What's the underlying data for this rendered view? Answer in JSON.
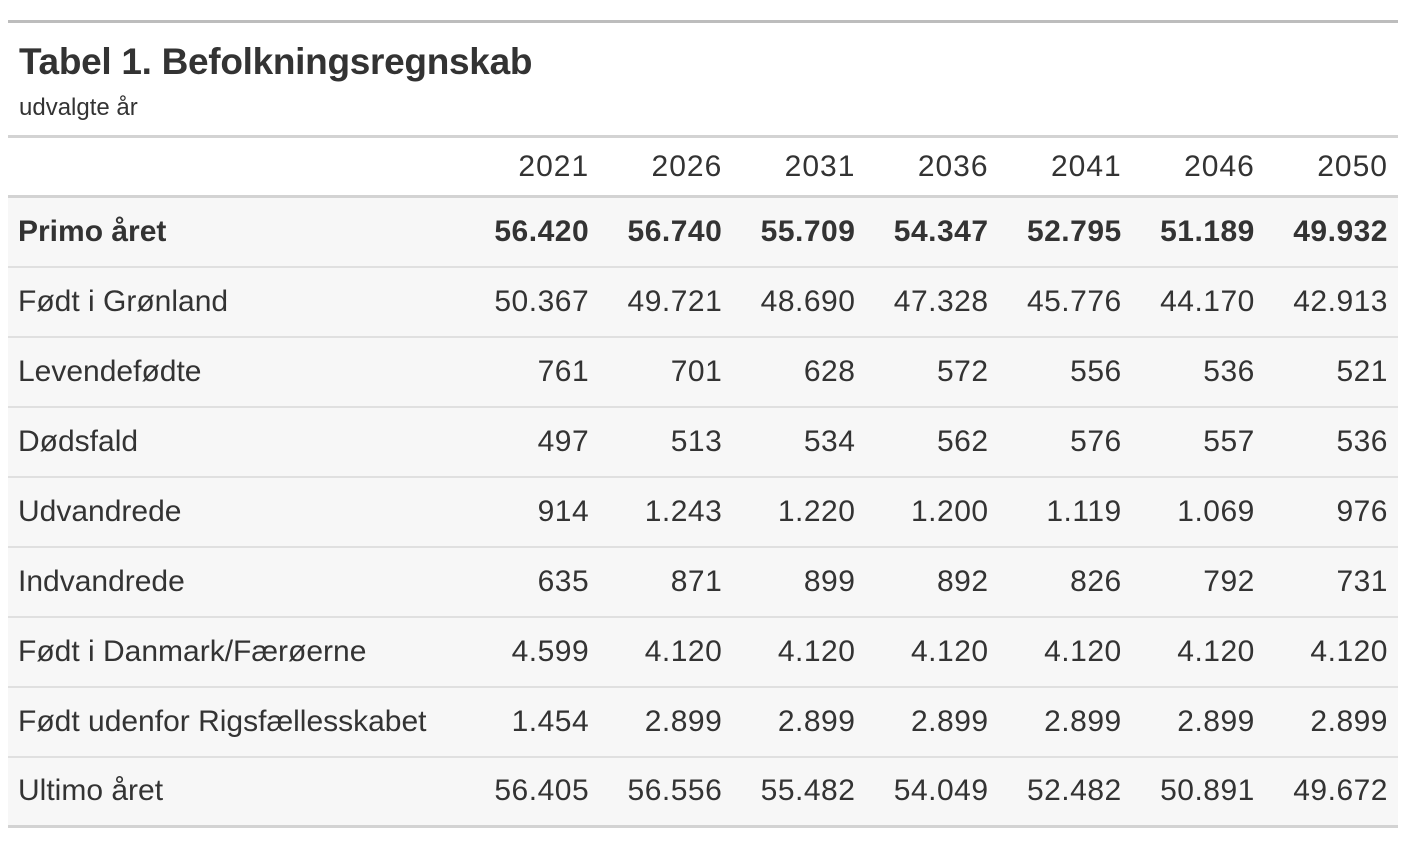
{
  "header": {
    "title": "Tabel 1. Befolkningsregnskab",
    "subtitle": "udvalgte år"
  },
  "table": {
    "columns": [
      "2021",
      "2026",
      "2031",
      "2036",
      "2041",
      "2046",
      "2050"
    ],
    "rows": [
      {
        "label": "Primo året",
        "bold": true,
        "values": [
          "56.420",
          "56.740",
          "55.709",
          "54.347",
          "52.795",
          "51.189",
          "49.932"
        ]
      },
      {
        "label": "Født i Grønland",
        "values": [
          "50.367",
          "49.721",
          "48.690",
          "47.328",
          "45.776",
          "44.170",
          "42.913"
        ]
      },
      {
        "label": "Levendefødte",
        "values": [
          "761",
          "701",
          "628",
          "572",
          "556",
          "536",
          "521"
        ]
      },
      {
        "label": "Dødsfald",
        "values": [
          "497",
          "513",
          "534",
          "562",
          "576",
          "557",
          "536"
        ]
      },
      {
        "label": "Udvandrede",
        "values": [
          "914",
          "1.243",
          "1.220",
          "1.200",
          "1.119",
          "1.069",
          "976"
        ]
      },
      {
        "label": "Indvandrede",
        "values": [
          "635",
          "871",
          "899",
          "892",
          "826",
          "792",
          "731"
        ]
      },
      {
        "label": "Født i Danmark/Færøerne",
        "values": [
          "4.599",
          "4.120",
          "4.120",
          "4.120",
          "4.120",
          "4.120",
          "4.120"
        ]
      },
      {
        "label": "Født udenfor Rigsfællesskabet",
        "values": [
          "1.454",
          "2.899",
          "2.899",
          "2.899",
          "2.899",
          "2.899",
          "2.899"
        ]
      },
      {
        "label": "Ultimo året",
        "values": [
          "56.405",
          "56.556",
          "55.482",
          "54.049",
          "52.482",
          "50.891",
          "49.672"
        ]
      }
    ]
  }
}
